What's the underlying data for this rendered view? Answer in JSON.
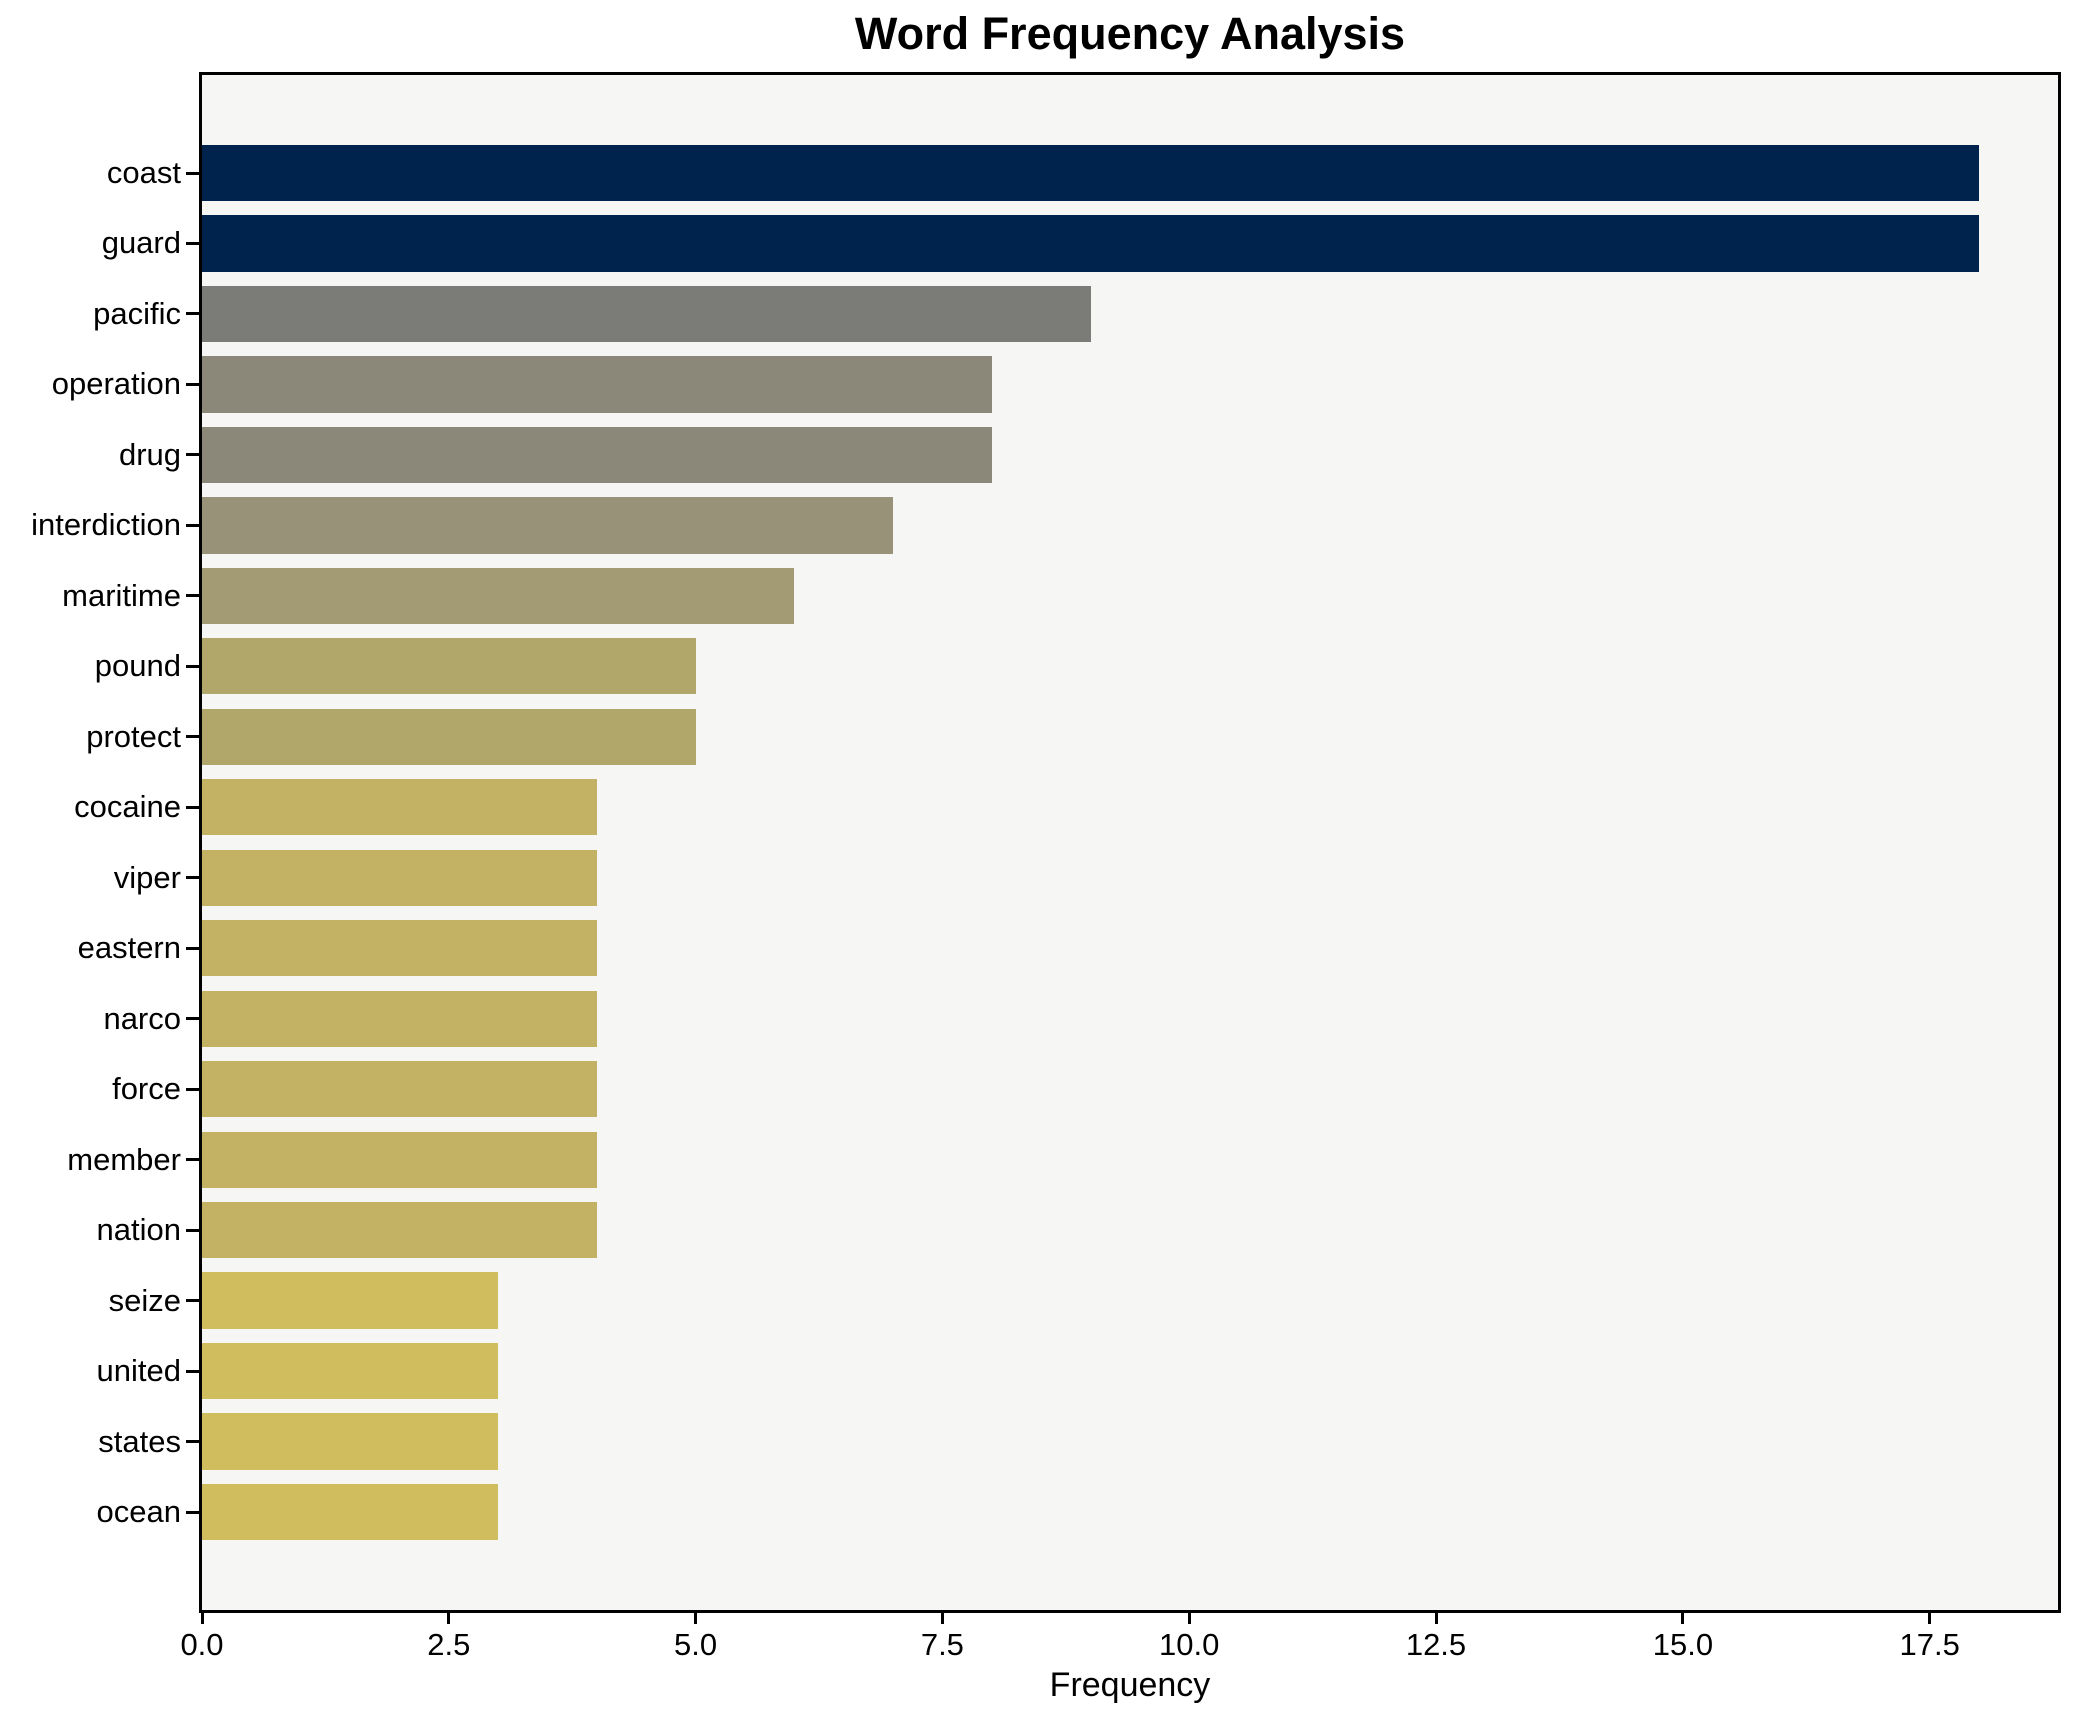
{
  "chart_data": {
    "type": "bar",
    "orientation": "horizontal",
    "title": "Word Frequency Analysis",
    "xlabel": "Frequency",
    "ylabel": "",
    "categories": [
      "coast",
      "guard",
      "pacific",
      "operation",
      "drug",
      "interdiction",
      "maritime",
      "pound",
      "protect",
      "cocaine",
      "viper",
      "eastern",
      "narco",
      "force",
      "member",
      "nation",
      "seize",
      "united",
      "states",
      "ocean"
    ],
    "values": [
      18,
      18,
      9,
      8,
      8,
      7,
      6,
      5,
      5,
      4,
      4,
      4,
      4,
      4,
      4,
      4,
      3,
      3,
      3,
      3
    ],
    "bar_colors": [
      "#00234e",
      "#00234e",
      "#7b7b78",
      "#8b8879",
      "#8b8879",
      "#989279",
      "#a29b73",
      "#b2a76b",
      "#b2a76b",
      "#c3b264",
      "#c3b264",
      "#c3b264",
      "#c3b264",
      "#c3b264",
      "#c3b264",
      "#c3b264",
      "#d0be5e",
      "#d0be5e",
      "#d0be5e",
      "#d0be5e"
    ],
    "x_ticks": [
      {
        "label": "0.0",
        "value": 0
      },
      {
        "label": "2.5",
        "value": 2.5
      },
      {
        "label": "5.0",
        "value": 5
      },
      {
        "label": "7.5",
        "value": 7.5
      },
      {
        "label": "10.0",
        "value": 10
      },
      {
        "label": "12.5",
        "value": 12.5
      },
      {
        "label": "15.0",
        "value": 15
      },
      {
        "label": "17.5",
        "value": 17.5
      }
    ],
    "xlim": [
      0,
      18.8
    ],
    "grid": false,
    "legend": null,
    "plot_background": "#f6f6f4",
    "figure_background": "#ffffff",
    "bar_color_low": "#d0be5e",
    "bar_color_high": "#00234e"
  }
}
